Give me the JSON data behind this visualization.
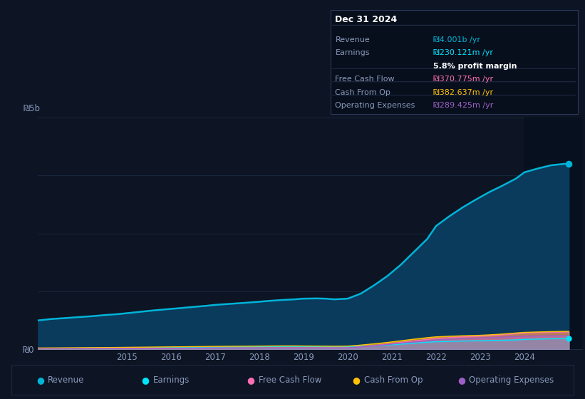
{
  "background_color": "#0d1423",
  "plot_bg_color": "#0d1423",
  "years": [
    2013.0,
    2013.3,
    2013.6,
    2013.9,
    2014.2,
    2014.5,
    2014.8,
    2015.0,
    2015.3,
    2015.6,
    2015.9,
    2016.2,
    2016.5,
    2016.8,
    2017.0,
    2017.3,
    2017.6,
    2017.9,
    2018.2,
    2018.5,
    2018.8,
    2019.0,
    2019.3,
    2019.5,
    2019.7,
    2020.0,
    2020.3,
    2020.6,
    2020.9,
    2021.2,
    2021.5,
    2021.8,
    2022.0,
    2022.3,
    2022.6,
    2022.9,
    2023.2,
    2023.5,
    2023.8,
    2024.0,
    2024.3,
    2024.6,
    2024.9,
    2025.0
  ],
  "revenue": [
    620,
    650,
    670,
    690,
    710,
    735,
    755,
    775,
    805,
    835,
    860,
    885,
    910,
    935,
    955,
    975,
    995,
    1015,
    1040,
    1060,
    1075,
    1090,
    1095,
    1090,
    1075,
    1090,
    1200,
    1380,
    1580,
    1820,
    2100,
    2380,
    2660,
    2870,
    3060,
    3230,
    3390,
    3530,
    3680,
    3820,
    3900,
    3970,
    4001,
    4001
  ],
  "earnings": [
    15,
    17,
    19,
    21,
    23,
    25,
    27,
    29,
    32,
    35,
    38,
    40,
    42,
    44,
    46,
    48,
    50,
    52,
    55,
    58,
    58,
    56,
    54,
    52,
    50,
    52,
    62,
    75,
    90,
    108,
    128,
    150,
    160,
    168,
    175,
    180,
    185,
    192,
    200,
    210,
    218,
    225,
    230,
    230
  ],
  "free_cash_flow": [
    10,
    11,
    12,
    13,
    14,
    15,
    16,
    17,
    18,
    19,
    20,
    21,
    22,
    23,
    24,
    25,
    26,
    27,
    28,
    29,
    30,
    30,
    29,
    29,
    28,
    30,
    50,
    80,
    110,
    145,
    178,
    210,
    230,
    248,
    265,
    275,
    290,
    310,
    335,
    350,
    358,
    365,
    371,
    371
  ],
  "cash_from_op": [
    25,
    27,
    29,
    31,
    33,
    35,
    37,
    39,
    42,
    45,
    48,
    51,
    54,
    57,
    59,
    61,
    63,
    65,
    68,
    70,
    70,
    68,
    66,
    64,
    62,
    65,
    88,
    115,
    145,
    180,
    215,
    248,
    265,
    278,
    288,
    295,
    308,
    325,
    348,
    362,
    370,
    378,
    383,
    383
  ],
  "operating_expenses": [
    8,
    9,
    10,
    11,
    12,
    13,
    14,
    15,
    16,
    17,
    18,
    19,
    20,
    21,
    22,
    23,
    24,
    25,
    26,
    27,
    28,
    28,
    27,
    26,
    25,
    28,
    48,
    72,
    100,
    128,
    155,
    180,
    200,
    215,
    228,
    238,
    248,
    260,
    272,
    280,
    284,
    287,
    289,
    289
  ],
  "revenue_color": "#00b4d8",
  "revenue_fill": "#0a3a5c",
  "earnings_color": "#00e5ff",
  "free_cash_flow_color": "#ff6eb4",
  "cash_from_op_color": "#ffc107",
  "operating_expenses_color": "#9c5fc5",
  "grid_color": "#1a2a40",
  "text_color": "#8899bb",
  "highlight_bg": "#07101e",
  "highlight_x_start": 2024.0,
  "ylim": [
    0,
    5000
  ],
  "xlim_start": 2013.0,
  "xlim_end": 2025.3,
  "ytick_0_label": "₪0",
  "ytick_5b_label": "₪5b",
  "xticks": [
    2015,
    2016,
    2017,
    2018,
    2019,
    2020,
    2021,
    2022,
    2023,
    2024
  ],
  "legend_items": [
    {
      "label": "Revenue",
      "color": "#00b4d8"
    },
    {
      "label": "Earnings",
      "color": "#00e5ff"
    },
    {
      "label": "Free Cash Flow",
      "color": "#ff6eb4"
    },
    {
      "label": "Cash From Op",
      "color": "#ffc107"
    },
    {
      "label": "Operating Expenses",
      "color": "#9c5fc5"
    }
  ],
  "tooltip_title": "Dec 31 2024",
  "tooltip_rows": [
    {
      "label": "Revenue",
      "value": "₪4.001b /yr",
      "color": "#00b4d8",
      "separator_before": true
    },
    {
      "label": "Earnings",
      "value": "₪230.121m /yr",
      "color": "#00e5ff",
      "separator_before": false
    },
    {
      "label": "",
      "value": "5.8% profit margin",
      "color": "#ffffff",
      "separator_before": false,
      "bold_value": true
    },
    {
      "label": "Free Cash Flow",
      "value": "₪370.775m /yr",
      "color": "#ff6eb4",
      "separator_before": true
    },
    {
      "label": "Cash From Op",
      "value": "₪382.637m /yr",
      "color": "#ffc107",
      "separator_before": true
    },
    {
      "label": "Operating Expenses",
      "value": "₪289.425m /yr",
      "color": "#9c5fc5",
      "separator_before": true
    }
  ],
  "tooltip_separator_color": "#2a3a5a",
  "tooltip_bg": "#080f1c",
  "tooltip_border": "#2a3a5a"
}
